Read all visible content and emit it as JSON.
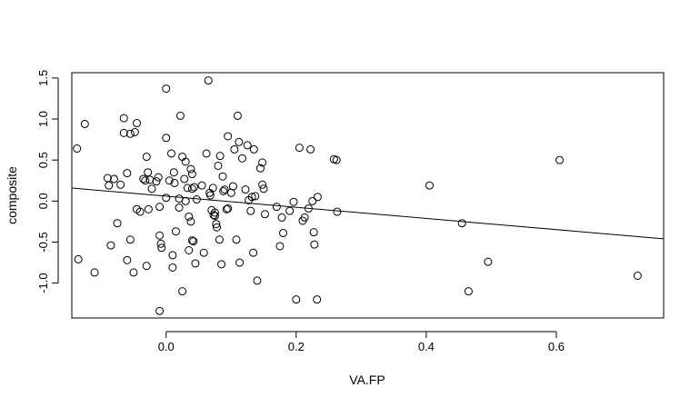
{
  "chart_data": {
    "type": "scatter",
    "xlabel": "VA.FP",
    "ylabel": "composite",
    "xlim": [
      -0.145,
      0.765
    ],
    "ylim": [
      -1.425,
      1.565
    ],
    "xticks": [
      0.0,
      0.2,
      0.4,
      0.6
    ],
    "xtick_labels": [
      "0.0",
      "0.2",
      "0.4",
      "0.6"
    ],
    "yticks": [
      -1.0,
      -0.5,
      0.0,
      0.5,
      1.0,
      1.5
    ],
    "ytick_labels": [
      "-1.0",
      "-0.5",
      "0.0",
      "0.5",
      "1.0",
      "1.5"
    ],
    "grid": false,
    "marker": "open-circle",
    "fit_line": {
      "intercept": 0.06,
      "slope": -0.68
    },
    "points": [
      [
        -0.137,
        0.64
      ],
      [
        -0.135,
        -0.71
      ],
      [
        -0.125,
        0.94
      ],
      [
        -0.11,
        -0.87
      ],
      [
        -0.09,
        0.28
      ],
      [
        -0.088,
        0.19
      ],
      [
        -0.085,
        -0.54
      ],
      [
        -0.08,
        0.27
      ],
      [
        -0.075,
        -0.27
      ],
      [
        -0.07,
        0.2
      ],
      [
        -0.065,
        0.83
      ],
      [
        -0.065,
        1.01
      ],
      [
        -0.06,
        0.34
      ],
      [
        -0.06,
        -0.72
      ],
      [
        -0.055,
        0.82
      ],
      [
        -0.055,
        -0.47
      ],
      [
        -0.05,
        -0.87
      ],
      [
        -0.048,
        0.84
      ],
      [
        -0.045,
        0.95
      ],
      [
        -0.045,
        -0.1
      ],
      [
        -0.04,
        -0.13
      ],
      [
        -0.035,
        0.27
      ],
      [
        -0.032,
        0.25
      ],
      [
        -0.03,
        -0.79
      ],
      [
        -0.03,
        0.54
      ],
      [
        -0.028,
        0.35
      ],
      [
        -0.027,
        -0.1
      ],
      [
        -0.025,
        0.26
      ],
      [
        -0.022,
        0.15
      ],
      [
        -0.015,
        0.24
      ],
      [
        -0.012,
        0.29
      ],
      [
        -0.01,
        -0.07
      ],
      [
        -0.01,
        -0.42
      ],
      [
        -0.01,
        -1.34
      ],
      [
        -0.008,
        -0.52
      ],
      [
        -0.007,
        -0.57
      ],
      [
        0.0,
        1.37
      ],
      [
        0.0,
        0.77
      ],
      [
        0.0,
        0.04
      ],
      [
        0.005,
        0.25
      ],
      [
        0.008,
        0.58
      ],
      [
        0.01,
        -0.66
      ],
      [
        0.01,
        -0.81
      ],
      [
        0.012,
        0.35
      ],
      [
        0.013,
        0.22
      ],
      [
        0.015,
        -0.37
      ],
      [
        0.02,
        0.03
      ],
      [
        0.02,
        -0.08
      ],
      [
        0.022,
        1.04
      ],
      [
        0.025,
        -1.1
      ],
      [
        0.025,
        0.54
      ],
      [
        0.028,
        0.27
      ],
      [
        0.03,
        0.48
      ],
      [
        0.03,
        0.0
      ],
      [
        0.033,
        0.16
      ],
      [
        0.035,
        -0.19
      ],
      [
        0.035,
        -0.6
      ],
      [
        0.038,
        0.39
      ],
      [
        0.038,
        -0.25
      ],
      [
        0.04,
        0.33
      ],
      [
        0.04,
        0.15
      ],
      [
        0.04,
        -0.48
      ],
      [
        0.042,
        -0.49
      ],
      [
        0.043,
        0.17
      ],
      [
        0.045,
        -0.76
      ],
      [
        0.047,
        0.02
      ],
      [
        0.055,
        0.19
      ],
      [
        0.058,
        -0.63
      ],
      [
        0.062,
        0.58
      ],
      [
        0.065,
        1.47
      ],
      [
        0.067,
        0.1
      ],
      [
        0.068,
        0.07
      ],
      [
        0.07,
        -0.11
      ],
      [
        0.072,
        0.16
      ],
      [
        0.073,
        -0.17
      ],
      [
        0.075,
        -0.14
      ],
      [
        0.075,
        -0.18
      ],
      [
        0.077,
        -0.28
      ],
      [
        0.078,
        -0.32
      ],
      [
        0.08,
        0.43
      ],
      [
        0.082,
        -0.47
      ],
      [
        0.083,
        0.55
      ],
      [
        0.085,
        -0.77
      ],
      [
        0.087,
        0.3
      ],
      [
        0.088,
        0.12
      ],
      [
        0.09,
        0.14
      ],
      [
        0.093,
        -0.1
      ],
      [
        0.095,
        -0.09
      ],
      [
        0.095,
        0.79
      ],
      [
        0.1,
        0.1
      ],
      [
        0.103,
        0.18
      ],
      [
        0.105,
        0.63
      ],
      [
        0.108,
        -0.47
      ],
      [
        0.11,
        1.04
      ],
      [
        0.112,
        0.72
      ],
      [
        0.113,
        -0.75
      ],
      [
        0.117,
        0.52
      ],
      [
        0.122,
        0.14
      ],
      [
        0.125,
        0.68
      ],
      [
        0.127,
        0.01
      ],
      [
        0.13,
        -0.12
      ],
      [
        0.132,
        0.05
      ],
      [
        0.134,
        -0.63
      ],
      [
        0.135,
        0.63
      ],
      [
        0.137,
        0.06
      ],
      [
        0.14,
        -0.97
      ],
      [
        0.145,
        0.4
      ],
      [
        0.148,
        0.47
      ],
      [
        0.148,
        0.2
      ],
      [
        0.15,
        0.15
      ],
      [
        0.152,
        -0.16
      ],
      [
        0.17,
        -0.07
      ],
      [
        0.175,
        -0.55
      ],
      [
        0.178,
        -0.2
      ],
      [
        0.18,
        -0.39
      ],
      [
        0.19,
        -0.12
      ],
      [
        0.196,
        -0.01
      ],
      [
        0.2,
        -1.2
      ],
      [
        0.205,
        0.65
      ],
      [
        0.21,
        -0.24
      ],
      [
        0.213,
        -0.2
      ],
      [
        0.219,
        -0.09
      ],
      [
        0.222,
        0.63
      ],
      [
        0.225,
        0.0
      ],
      [
        0.227,
        -0.38
      ],
      [
        0.228,
        -0.53
      ],
      [
        0.232,
        -1.2
      ],
      [
        0.233,
        0.05
      ],
      [
        0.258,
        0.51
      ],
      [
        0.262,
        0.5
      ],
      [
        0.263,
        -0.13
      ],
      [
        0.405,
        0.19
      ],
      [
        0.455,
        -0.27
      ],
      [
        0.465,
        -1.1
      ],
      [
        0.495,
        -0.74
      ],
      [
        0.605,
        0.5
      ],
      [
        0.725,
        -0.91
      ]
    ]
  }
}
